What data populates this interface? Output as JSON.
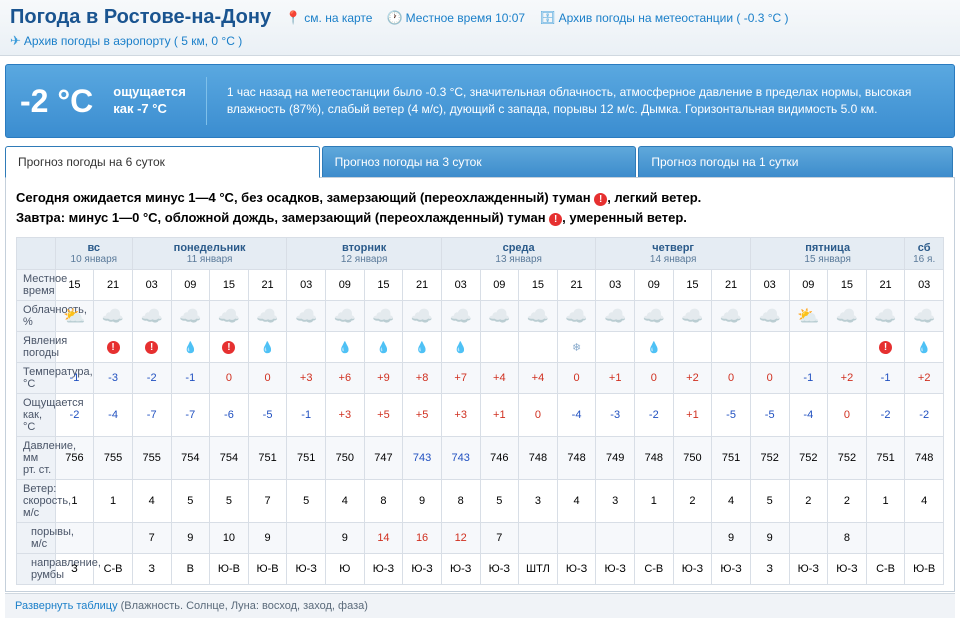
{
  "header": {
    "title": "Погода в Ростове-на-Дону",
    "map_link": "см. на карте",
    "time_label": "Местное время 10:07",
    "archive_station": "Архив погоды на метеостанции ( -0.3 °C )",
    "archive_airport": "Архив погоды в аэропорту ( 5 км, 0 °C )"
  },
  "now": {
    "temp": "-2 °C",
    "feels_l1": "ощущается",
    "feels_l2": "как -7 °C",
    "desc": "1 час назад на метеостанции было -0.3 °C, значительная облачность, атмосферное давление в пределах нормы, высокая влажность (87%), слабый ветер (4 м/с), дующий с запада, порывы 12 м/с. Дымка. Горизонтальная видимость 5.0 км."
  },
  "tabs": [
    "Прогноз погоды на 6 суток",
    "Прогноз погоды на 3 суток",
    "Прогноз погоды на 1 сутки"
  ],
  "summary": {
    "l1a": "Сегодня ожидается минус 1—4 °C, без осадков, замерзающий (переохлажденный) туман ",
    "l1b": ", легкий ветер.",
    "l2a": "Завтра: минус 1—0 °C, обложной дождь, замерзающий (переохлажденный) туман ",
    "l2b": ", умеренный ветер."
  },
  "days": [
    {
      "name": "вс",
      "date": "10 января",
      "cols": 2
    },
    {
      "name": "понедельник",
      "date": "11 января",
      "cols": 4
    },
    {
      "name": "вторник",
      "date": "12 января",
      "cols": 4
    },
    {
      "name": "среда",
      "date": "13 января",
      "cols": 4
    },
    {
      "name": "четверг",
      "date": "14 января",
      "cols": 4
    },
    {
      "name": "пятница",
      "date": "15 января",
      "cols": 4
    },
    {
      "name": "сб",
      "date": "16 я.",
      "cols": 1
    }
  ],
  "rows": {
    "time_label": "Местное время",
    "time": [
      "15",
      "21",
      "03",
      "09",
      "15",
      "21",
      "03",
      "09",
      "15",
      "21",
      "03",
      "09",
      "15",
      "21",
      "03",
      "09",
      "15",
      "21",
      "03",
      "09",
      "15",
      "21",
      "03"
    ],
    "cloud_label": "Облачность, %",
    "clouds": [
      "⛅",
      "☁️",
      "☁️",
      "☁️",
      "☁️",
      "☁️",
      "☁️",
      "☁️",
      "☁️",
      "☁️",
      "☁️",
      "☁️",
      "☁️",
      "☁️",
      "☁️",
      "☁️",
      "☁️",
      "☁️",
      "☁️",
      "⛅",
      "☁️",
      "☁️",
      "☁️"
    ],
    "phenom_label": "Явления погоды",
    "phenom": [
      "",
      "!",
      "!",
      "💧",
      "!",
      "💧",
      "",
      "💧",
      "💧",
      "💧",
      "💧",
      "",
      "",
      "*",
      "",
      "💧",
      "",
      "",
      "",
      "",
      "",
      "!",
      "💧"
    ],
    "temp_label": "Температура, °C",
    "temp": [
      "-1",
      "-3",
      "-2",
      "-1",
      "0",
      "0",
      "+3",
      "+6",
      "+9",
      "+8",
      "+7",
      "+4",
      "+4",
      "0",
      "+1",
      "0",
      "+2",
      "0",
      "0",
      "-1",
      "+2",
      "-1",
      "+2"
    ],
    "feels_label": "Ощущается как, °C",
    "feels": [
      "-2",
      "-4",
      "-7",
      "-7",
      "-6",
      "-5",
      "-1",
      "+3",
      "+5",
      "+5",
      "+3",
      "+1",
      "0",
      "-4",
      "-3",
      "-2",
      "+1",
      "-5",
      "-5",
      "-4",
      "0",
      "-2",
      "-2"
    ],
    "press_label": "Давление, мм рт. ст.",
    "press": [
      "756",
      "755",
      "755",
      "754",
      "754",
      "751",
      "751",
      "750",
      "747",
      "743",
      "743",
      "746",
      "748",
      "748",
      "749",
      "748",
      "750",
      "751",
      "752",
      "752",
      "752",
      "751",
      "748"
    ],
    "wind_label": "Ветер: скорость, м/с",
    "wind_s": [
      "1",
      "1",
      "4",
      "5",
      "5",
      "7",
      "5",
      "4",
      "8",
      "9",
      "8",
      "5",
      "3",
      "4",
      "3",
      "1",
      "2",
      "4",
      "5",
      "2",
      "2",
      "1",
      "4"
    ],
    "gust_label": "порывы, м/с",
    "gust": [
      "",
      "",
      "7",
      "9",
      "10",
      "9",
      "",
      "9",
      "14",
      "16",
      "12",
      "7",
      "",
      "",
      "",
      "",
      "",
      "9",
      "9",
      "",
      "8",
      "",
      ""
    ],
    "dir_label": "направление, румбы",
    "dir": [
      "З",
      "С-В",
      "З",
      "В",
      "Ю-В",
      "Ю-В",
      "Ю-З",
      "Ю",
      "Ю-З",
      "Ю-З",
      "Ю-З",
      "Ю-З",
      "ШТЛ",
      "Ю-З",
      "Ю-З",
      "С-В",
      "Ю-З",
      "Ю-З",
      "З",
      "Ю-З",
      "Ю-З",
      "С-В",
      "Ю-В"
    ]
  },
  "footer": {
    "expand": "Развернуть таблицу",
    "extra": "(Влажность. Солнце, Луна: восход, заход, фаза)"
  },
  "colors": {
    "neg": "#2050c0",
    "pos": "#d03020",
    "link": "#1a7fc9"
  }
}
